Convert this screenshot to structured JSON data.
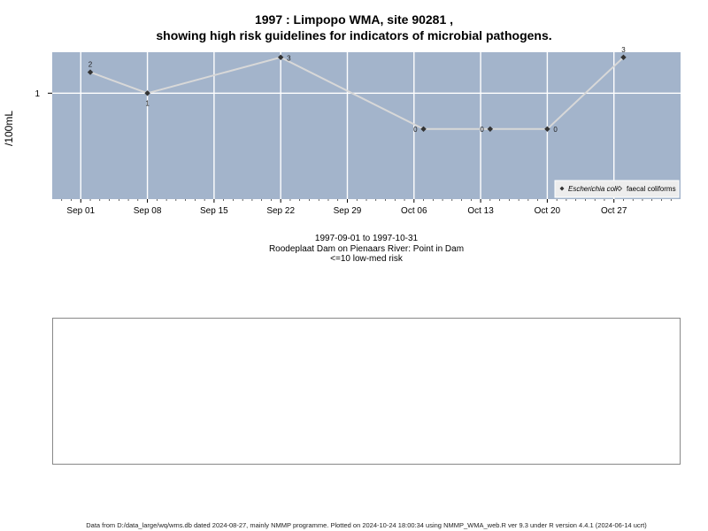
{
  "title_line1": "1997 : Limpopo WMA, site 90281 ,",
  "title_line2": "showing high risk guidelines for indicators of microbial pathogens.",
  "info_lines": [
    "1997-09-01 to 1997-10-31",
    "Roodeplaat Dam on Pienaars River: Point in Dam",
    "<=10 low-med risk"
  ],
  "footer": "Data from D:/data_large/wq/wms.db dated 2024-08-27, mainly NMMP programme. Plotted on 2024-10-24 18:00:34 using NMMP_WMA_web.R ver 9.3 under R version 4.4.1 (2024-06-14 ucrt)",
  "colors": {
    "panel_bg": "#a3b4cb",
    "grid": "#ffffff",
    "series_line": "#d8d8d8",
    "point": "#333333"
  },
  "chart_data": {
    "type": "line",
    "ylabel": "/100mL",
    "y_ticks": [
      {
        "value": 1,
        "label": "1"
      }
    ],
    "x_ticks": [
      {
        "date": "1997-09-01",
        "label": "Sep 01"
      },
      {
        "date": "1997-09-08",
        "label": "Sep 08"
      },
      {
        "date": "1997-09-15",
        "label": "Sep 15"
      },
      {
        "date": "1997-09-22",
        "label": "Sep 22"
      },
      {
        "date": "1997-09-29",
        "label": "Sep 29"
      },
      {
        "date": "1997-10-06",
        "label": "Oct 06"
      },
      {
        "date": "1997-10-13",
        "label": "Oct 13"
      },
      {
        "date": "1997-10-20",
        "label": "Oct 20"
      },
      {
        "date": "1997-10-27",
        "label": "Oct 27"
      }
    ],
    "xlim": [
      "1997-08-29",
      "1997-11-03"
    ],
    "series": [
      {
        "name": "Escherichia coli",
        "points": [
          {
            "x": "1997-09-02",
            "y": 2,
            "label": "2"
          },
          {
            "x": "1997-09-08",
            "y": 1,
            "label": "1"
          },
          {
            "x": "1997-09-22",
            "y": 3,
            "label": "3"
          },
          {
            "x": "1997-10-07",
            "y": 0,
            "label": "0"
          },
          {
            "x": "1997-10-14",
            "y": 0,
            "label": "0"
          },
          {
            "x": "1997-10-20",
            "y": 0,
            "label": "0"
          },
          {
            "x": "1997-10-28",
            "y": 3,
            "label": "3"
          }
        ]
      }
    ],
    "legend": {
      "placement": "bottom-right",
      "entries": [
        {
          "label": "Escherichia coli",
          "marker": "filled-diamond"
        },
        {
          "label": "faecal coliforms",
          "marker": "open-diamond"
        }
      ]
    }
  }
}
